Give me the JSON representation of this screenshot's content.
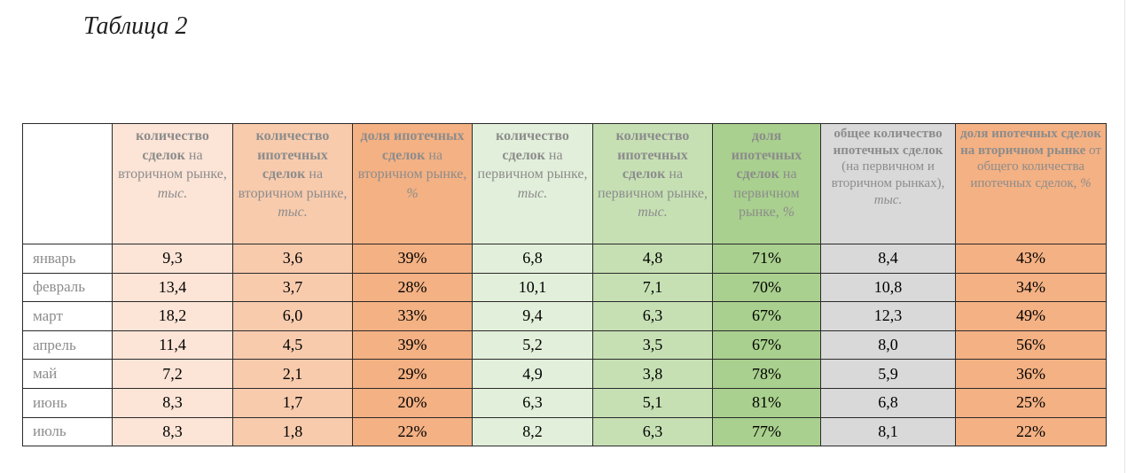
{
  "document": {
    "title": "Таблица 2"
  },
  "table": {
    "headers": [
      {
        "bold": "количество сделок",
        "normal": " на вторичном рынке, ",
        "italic": "тыс."
      },
      {
        "bold": "количество ипотечных сделок",
        "normal": " на вторичном рынке, ",
        "italic": "тыс."
      },
      {
        "bold": "доля ипотечных сделок",
        "normal": " на вторичном рынке, ",
        "italic": "%"
      },
      {
        "bold": "количество сделок",
        "normal": " на первичном рынке, ",
        "italic": "тыс."
      },
      {
        "bold": "количество ипотечных сделок",
        "normal": " на первичном рынке, ",
        "italic": "тыс."
      },
      {
        "bold": "доля ипотечных сделок",
        "normal": " на первичном рынке, ",
        "italic": "%"
      },
      {
        "bold": "общее количество ипотечных сделок",
        "normal": " (на первичном и вторичном рынках), ",
        "italic": "тыс."
      },
      {
        "bold": "доля ипотечных сделок на вторичном рынке",
        "normal": " от общего количества ипотечных сделок, ",
        "italic": "%"
      }
    ],
    "rows": [
      {
        "month": "январь",
        "values": [
          "9,3",
          "3,6",
          "39%",
          "6,8",
          "4,8",
          "71%",
          "8,4",
          "43%"
        ]
      },
      {
        "month": "февраль",
        "values": [
          "13,4",
          "3,7",
          "28%",
          "10,1",
          "7,1",
          "70%",
          "10,8",
          "34%"
        ]
      },
      {
        "month": "март",
        "values": [
          "18,2",
          "6,0",
          "33%",
          "9,4",
          "6,3",
          "67%",
          "12,3",
          "49%"
        ]
      },
      {
        "month": "апрель",
        "values": [
          "11,4",
          "4,5",
          "39%",
          "5,2",
          "3,5",
          "67%",
          "8,0",
          "56%"
        ]
      },
      {
        "month": "май",
        "values": [
          "7,2",
          "2,1",
          "29%",
          "4,9",
          "3,8",
          "78%",
          "5,9",
          "36%"
        ]
      },
      {
        "month": "июнь",
        "values": [
          "8,3",
          "1,7",
          "20%",
          "6,3",
          "5,1",
          "81%",
          "6,8",
          "25%"
        ]
      },
      {
        "month": "июль",
        "values": [
          "8,3",
          "1,8",
          "22%",
          "8,2",
          "6,3",
          "77%",
          "8,1",
          "22%"
        ]
      }
    ],
    "column_colors": [
      "#fce4d6",
      "#f8cbad",
      "#f4b183",
      "#e2efda",
      "#c6e0b4",
      "#a9d08e",
      "#d9d9d9",
      "#f4b183"
    ]
  }
}
